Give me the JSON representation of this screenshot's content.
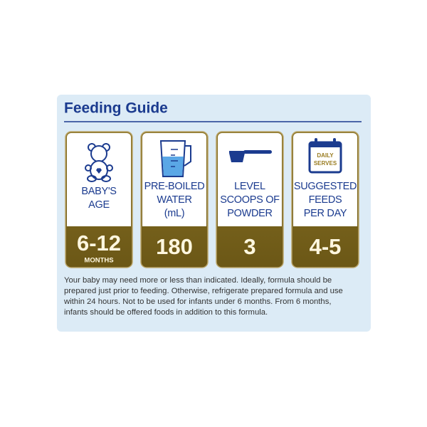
{
  "title": "Feeding Guide",
  "columns": [
    {
      "label": [
        "BABY'S",
        "AGE"
      ],
      "value": "6-12",
      "unit": "MONTHS"
    },
    {
      "label": [
        "PRE-BOILED",
        "WATER",
        "(mL)"
      ],
      "value": "180"
    },
    {
      "label": [
        "LEVEL",
        "SCOOPS OF",
        "POWDER"
      ],
      "value": "3"
    },
    {
      "label": [
        "SUGGESTED",
        "FEEDS",
        "PER DAY"
      ],
      "value": "4-5",
      "icon_text": [
        "DAILY",
        "SERVES"
      ]
    }
  ],
  "note": [
    "Your baby may need more or less than indicated. Ideally, formula should be",
    "prepared just prior to feeding. Otherwise, refrigerate prepared formula and use",
    "within 24 hours. Not to be used for infants under 6 months. From 6 months,",
    "infants should be offered foods in addition to this formula."
  ]
}
